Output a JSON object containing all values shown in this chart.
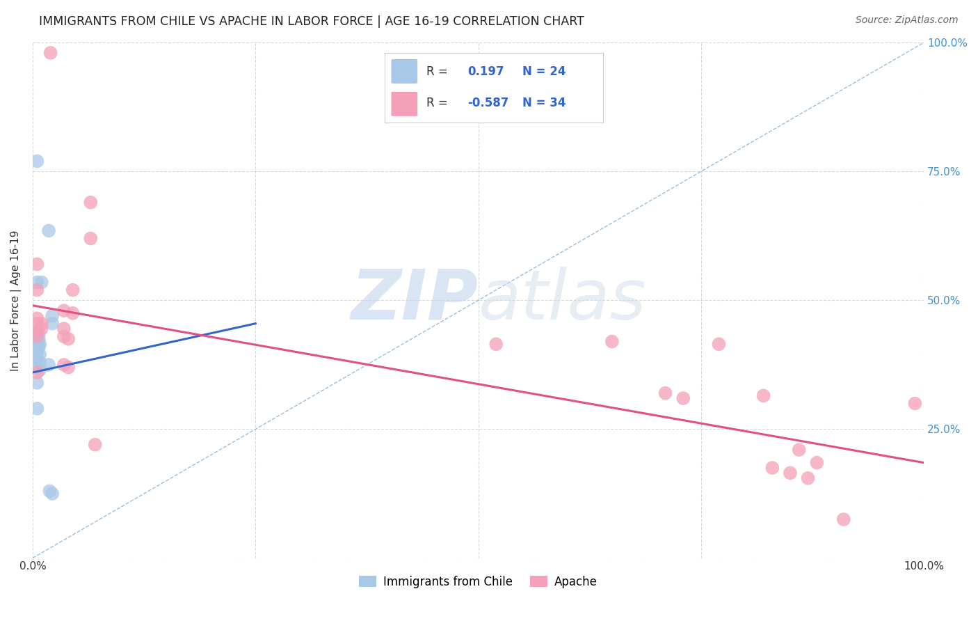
{
  "title": "IMMIGRANTS FROM CHILE VS APACHE IN LABOR FORCE | AGE 16-19 CORRELATION CHART",
  "source": "Source: ZipAtlas.com",
  "ylabel": "In Labor Force | Age 16-19",
  "xlim": [
    0.0,
    1.0
  ],
  "ylim": [
    0.0,
    1.0
  ],
  "watermark_zip": "ZIP",
  "watermark_atlas": "atlas",
  "legend_chile_r": "0.197",
  "legend_chile_n": "24",
  "legend_apache_r": "-0.587",
  "legend_apache_n": "34",
  "blue_points": [
    [
      0.005,
      0.77
    ],
    [
      0.018,
      0.635
    ],
    [
      0.005,
      0.535
    ],
    [
      0.01,
      0.535
    ],
    [
      0.022,
      0.47
    ],
    [
      0.022,
      0.455
    ],
    [
      0.005,
      0.44
    ],
    [
      0.007,
      0.435
    ],
    [
      0.005,
      0.435
    ],
    [
      0.007,
      0.425
    ],
    [
      0.005,
      0.42
    ],
    [
      0.008,
      0.415
    ],
    [
      0.007,
      0.41
    ],
    [
      0.005,
      0.4
    ],
    [
      0.008,
      0.395
    ],
    [
      0.005,
      0.385
    ],
    [
      0.008,
      0.38
    ],
    [
      0.005,
      0.375
    ],
    [
      0.018,
      0.375
    ],
    [
      0.008,
      0.365
    ],
    [
      0.005,
      0.34
    ],
    [
      0.005,
      0.29
    ],
    [
      0.019,
      0.13
    ],
    [
      0.022,
      0.125
    ]
  ],
  "pink_points": [
    [
      0.02,
      0.98
    ],
    [
      0.065,
      0.69
    ],
    [
      0.065,
      0.62
    ],
    [
      0.005,
      0.57
    ],
    [
      0.005,
      0.52
    ],
    [
      0.045,
      0.52
    ],
    [
      0.035,
      0.48
    ],
    [
      0.045,
      0.475
    ],
    [
      0.005,
      0.465
    ],
    [
      0.005,
      0.455
    ],
    [
      0.01,
      0.455
    ],
    [
      0.01,
      0.445
    ],
    [
      0.035,
      0.445
    ],
    [
      0.005,
      0.44
    ],
    [
      0.005,
      0.43
    ],
    [
      0.035,
      0.43
    ],
    [
      0.04,
      0.425
    ],
    [
      0.035,
      0.375
    ],
    [
      0.04,
      0.37
    ],
    [
      0.005,
      0.36
    ],
    [
      0.07,
      0.22
    ],
    [
      0.52,
      0.415
    ],
    [
      0.65,
      0.42
    ],
    [
      0.71,
      0.32
    ],
    [
      0.73,
      0.31
    ],
    [
      0.77,
      0.415
    ],
    [
      0.82,
      0.315
    ],
    [
      0.83,
      0.175
    ],
    [
      0.85,
      0.165
    ],
    [
      0.86,
      0.21
    ],
    [
      0.87,
      0.155
    ],
    [
      0.88,
      0.185
    ],
    [
      0.91,
      0.075
    ],
    [
      0.99,
      0.3
    ]
  ],
  "blue_line_x": [
    0.0,
    0.25
  ],
  "blue_line_y": [
    0.36,
    0.455
  ],
  "pink_line_x": [
    0.0,
    1.0
  ],
  "pink_line_y": [
    0.49,
    0.185
  ],
  "diag_line_x": [
    0.0,
    1.0
  ],
  "diag_line_y": [
    0.0,
    1.0
  ],
  "blue_scatter_color": "#a8c8e8",
  "pink_scatter_color": "#f4a0b8",
  "blue_line_color": "#3366cc",
  "pink_line_color": "#e05080",
  "diag_line_color": "#90b8d8",
  "grid_color": "#d8d8d8",
  "bg_color": "#ffffff",
  "right_tick_color": "#4090d0",
  "title_color": "#222222",
  "source_color": "#666666"
}
